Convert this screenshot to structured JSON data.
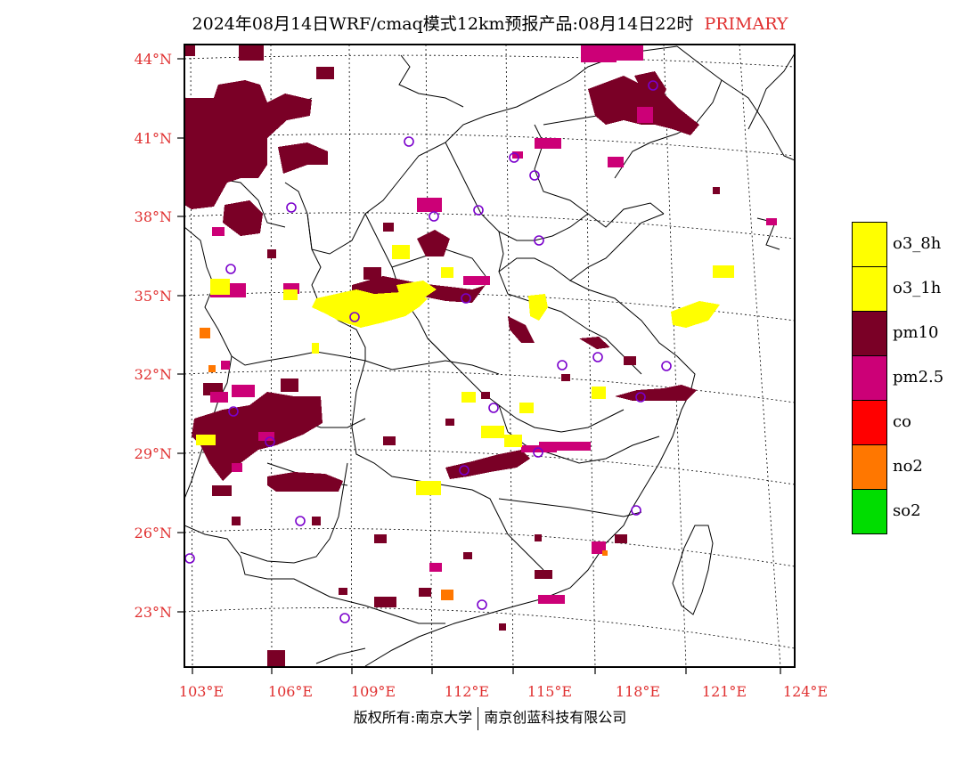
{
  "title": {
    "text": "2024年08月14日WRF/cmaq模式12km预报产品:08月14日22时",
    "tag": "PRIMARY"
  },
  "colors": {
    "label_red": "#e03030",
    "o3_8h": "#ffff00",
    "o3_1h": "#ffff00",
    "pm10": "#7a0026",
    "pm25": "#cc0077",
    "co": "#ff0000",
    "no2": "#ff7700",
    "so2": "#00dd00",
    "station": "#7a00cc"
  },
  "latitude_labels": [
    "44°N",
    "41°N",
    "38°N",
    "35°N",
    "32°N",
    "29°N",
    "26°N",
    "23°N"
  ],
  "longitude_labels": [
    "103°E",
    "106°E",
    "109°E",
    "112°E",
    "115°E",
    "118°E",
    "121°E",
    "124°E"
  ],
  "legend": [
    {
      "label": "o3_8h",
      "color": "#ffff00"
    },
    {
      "label": "o3_1h",
      "color": "#ffff00"
    },
    {
      "label": "pm10",
      "color": "#7a0026"
    },
    {
      "label": "pm2.5",
      "color": "#cc0077"
    },
    {
      "label": "co",
      "color": "#ff0000"
    },
    {
      "label": "no2",
      "color": "#ff7700"
    },
    {
      "label": "so2",
      "color": "#00dd00"
    }
  ],
  "copyright": {
    "left": "版权所有:南京大学",
    "right": "南京创蓝科技有限公司"
  }
}
